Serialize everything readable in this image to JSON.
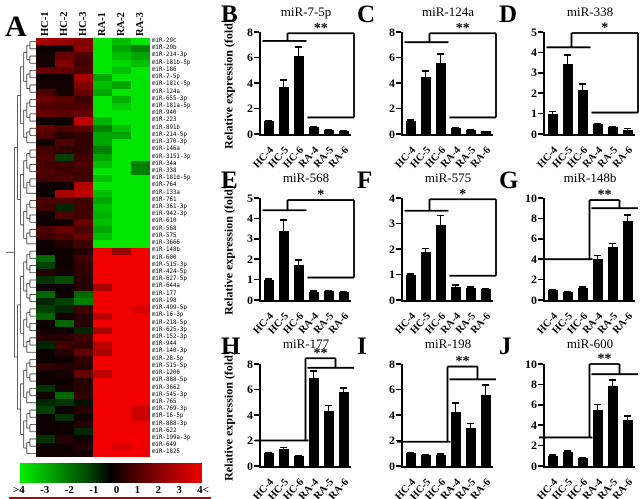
{
  "panel_a": {
    "letter": "A"
  },
  "chart_data": [
    {
      "type": "heatmap",
      "panel": "A",
      "col_labels": [
        "HC-1",
        "HC-2",
        "HC-3",
        "RA-1",
        "RA-2",
        "RA-3"
      ],
      "row_labels": [
        "miR-29c",
        "miR-29b",
        "miR-214-3p",
        "miR-181b-5p",
        "miR-186",
        "miR-7-5p",
        "miR-181c-5p",
        "miR-124a",
        "miR-655-3p",
        "miR-181a-5p",
        "miR-940",
        "miR-223",
        "miR-891b",
        "miR-214-5p",
        "miR-370-3p",
        "miR-146a",
        "miR-3151-3p",
        "miR-34a",
        "miR-338",
        "miR-181d-5p",
        "miR-764",
        "miR-133a",
        "miR-761",
        "miR-361-3p",
        "miR-942-3p",
        "miR-610",
        "miR-568",
        "miR-575",
        "miR-3666",
        "miR-148b",
        "miR-600",
        "miR-515-3p",
        "miR-424-5p",
        "miR-627-5p",
        "miR-644a",
        "miR-177",
        "miR-198",
        "miR-499-5p",
        "miR-16-3p",
        "miR-218-5p",
        "miR-625-3p",
        "miR-152-3p",
        "miR-944",
        "miR-140-3p",
        "miR-28-5p",
        "miR-515-5p",
        "miR-1200",
        "miR-888-5p",
        "miR-3662",
        "miR-545-3p",
        "miR-765",
        "miR-769-3p",
        "miR-16-5p",
        "miR-888-3p",
        "miR-622",
        "miR-199a-3p",
        "miR-649",
        "miR-1825"
      ],
      "values": [
        [
          2.6,
          2.4,
          2.0,
          -3.6,
          -3.0,
          -3.6
        ],
        [
          0.2,
          0.2,
          2.2,
          -3.6,
          -2.6,
          -2.0
        ],
        [
          0.3,
          1.6,
          1.2,
          -3.6,
          -3.0,
          -2.6
        ],
        [
          0.3,
          2.0,
          1.0,
          -3.6,
          -3.4,
          -3.0
        ],
        [
          1.6,
          1.5,
          1.2,
          -3.6,
          -3.0,
          -3.6
        ],
        [
          0.2,
          0.2,
          2.6,
          -2.6,
          -3.6,
          -3.6
        ],
        [
          0.3,
          0.3,
          2.0,
          -3.0,
          -2.6,
          -3.6
        ],
        [
          1.2,
          0.3,
          1.6,
          -2.6,
          -3.6,
          -3.6
        ],
        [
          1.6,
          1.4,
          1.0,
          -3.6,
          -2.8,
          -3.6
        ],
        [
          1.2,
          1.2,
          1.2,
          -3.6,
          -3.2,
          -3.6
        ],
        [
          1.6,
          1.4,
          1.6,
          -3.6,
          -3.6,
          -3.6
        ],
        [
          0.2,
          0.2,
          3.0,
          -2.8,
          -3.6,
          -3.6
        ],
        [
          1.6,
          1.2,
          1.4,
          -2.0,
          -3.0,
          -3.6
        ],
        [
          1.2,
          0.6,
          0.8,
          -2.6,
          -2.6,
          -3.6
        ],
        [
          0.2,
          1.2,
          0.8,
          -2.6,
          -3.6,
          -3.6
        ],
        [
          1.0,
          0.8,
          0.8,
          -2.0,
          -3.6,
          -3.6
        ],
        [
          1.2,
          -1.0,
          1.0,
          -2.6,
          -3.6,
          -3.6
        ],
        [
          1.0,
          1.0,
          1.2,
          -3.0,
          -3.6,
          -2.0
        ],
        [
          1.2,
          1.0,
          1.0,
          -3.6,
          -3.6,
          -2.0
        ],
        [
          1.0,
          1.2,
          1.0,
          -3.0,
          -3.6,
          -3.6
        ],
        [
          0.2,
          0.2,
          2.8,
          -3.6,
          -3.6,
          -3.6
        ],
        [
          0.2,
          2.6,
          3.0,
          -3.0,
          -3.6,
          -3.6
        ],
        [
          1.2,
          1.2,
          1.0,
          -2.6,
          -3.6,
          -3.6
        ],
        [
          1.0,
          -0.6,
          1.0,
          -3.0,
          -3.6,
          -3.6
        ],
        [
          0.2,
          1.2,
          1.0,
          -2.8,
          -3.6,
          -3.6
        ],
        [
          0.2,
          0.2,
          1.6,
          -3.0,
          -3.6,
          -3.6
        ],
        [
          1.2,
          1.6,
          1.2,
          -2.6,
          -3.6,
          -3.6
        ],
        [
          1.0,
          1.2,
          1.6,
          -3.0,
          -3.6,
          -3.6
        ],
        [
          0.2,
          0.6,
          1.0,
          -3.6,
          -3.6,
          -3.6
        ],
        [
          0.2,
          0.2,
          0.6,
          3.6,
          2.4,
          3.8
        ],
        [
          -1.6,
          0.2,
          1.0,
          3.8,
          3.8,
          3.8
        ],
        [
          -1.0,
          0.2,
          0.8,
          3.8,
          3.8,
          3.8
        ],
        [
          0.6,
          0.3,
          0.8,
          3.8,
          3.8,
          3.8
        ],
        [
          -0.8,
          -1.2,
          0.6,
          3.8,
          3.8,
          3.8
        ],
        [
          0.2,
          0.2,
          0.6,
          2.6,
          3.8,
          3.8
        ],
        [
          -1.6,
          0.2,
          -1.6,
          3.8,
          3.8,
          3.8
        ],
        [
          -0.6,
          -1.0,
          -2.0,
          3.8,
          3.8,
          3.8
        ],
        [
          -1.0,
          -0.6,
          1.0,
          3.8,
          3.8,
          3.4
        ],
        [
          -1.6,
          0.3,
          0.6,
          2.8,
          3.8,
          3.8
        ],
        [
          0.2,
          -1.6,
          0.6,
          3.8,
          3.8,
          3.8
        ],
        [
          0.2,
          0.2,
          -0.6,
          2.6,
          3.8,
          3.8
        ],
        [
          0.6,
          0.6,
          1.0,
          3.8,
          3.8,
          3.8
        ],
        [
          -0.6,
          1.0,
          0.8,
          3.0,
          3.8,
          3.8
        ],
        [
          0.2,
          0.6,
          1.6,
          2.6,
          3.8,
          3.8
        ],
        [
          0.2,
          0.2,
          0.8,
          3.8,
          3.8,
          3.8
        ],
        [
          0.8,
          0.6,
          0.6,
          3.8,
          3.8,
          3.8
        ],
        [
          0.2,
          0.3,
          1.6,
          3.0,
          3.8,
          3.8
        ],
        [
          0.2,
          0.2,
          0.6,
          3.8,
          3.8,
          3.8
        ],
        [
          -0.8,
          0.3,
          0.6,
          3.8,
          3.8,
          3.8
        ],
        [
          0.2,
          -1.6,
          0.8,
          3.8,
          3.8,
          3.8
        ],
        [
          -0.6,
          -0.8,
          -0.3,
          3.8,
          3.8,
          3.8
        ],
        [
          -1.0,
          0.2,
          0.6,
          3.8,
          3.8,
          3.2
        ],
        [
          0.2,
          -0.8,
          0.3,
          3.8,
          3.8,
          3.2
        ],
        [
          0.2,
          0.2,
          0.6,
          3.8,
          3.8,
          3.8
        ],
        [
          0.2,
          0.2,
          -0.6,
          3.8,
          3.8,
          3.8
        ],
        [
          -0.8,
          0.6,
          0.3,
          3.8,
          3.8,
          3.8
        ],
        [
          0.2,
          0.2,
          0.6,
          3.8,
          3.4,
          3.8
        ],
        [
          0.2,
          0.3,
          0.3,
          3.8,
          3.8,
          3.8
        ]
      ],
      "value_range": [
        -4,
        4
      ],
      "colorbar_ticks": [
        ">4",
        "-3",
        "-2",
        "-1",
        "0",
        "1",
        "2",
        "3",
        "4<"
      ],
      "colors": {
        "negative": "#00ff00",
        "zero": "#000000",
        "positive": "#ff0000"
      }
    },
    {
      "type": "bar",
      "panel": "B",
      "title": "miR-7-5p",
      "ylabel": "Relative expression (fold)",
      "show_ylabel": true,
      "categories": [
        "HC-4",
        "HC-5",
        "HC-6",
        "RA-4",
        "RA-5",
        "RA-6"
      ],
      "values": [
        1.0,
        3.7,
        6.1,
        0.55,
        0.3,
        0.25
      ],
      "errors": [
        0.12,
        0.6,
        0.8,
        0.08,
        0.06,
        0.05
      ],
      "ylim": [
        0,
        8
      ],
      "ystep": 2,
      "significance": {
        "label": "**",
        "high_group": "HC",
        "high_line_y": 7.3,
        "low_line_y": 1.3,
        "top_line_y": 7.9
      }
    },
    {
      "type": "bar",
      "panel": "C",
      "title": "miR-124a",
      "ylabel": "Relative expression (fold)",
      "show_ylabel": false,
      "categories": [
        "HC-4",
        "HC-5",
        "HC-6",
        "RA-4",
        "RA-5",
        "RA-6"
      ],
      "values": [
        1.0,
        4.5,
        5.6,
        0.45,
        0.3,
        0.2
      ],
      "errors": [
        0.18,
        0.5,
        0.75,
        0.08,
        0.06,
        0.05
      ],
      "ylim": [
        0,
        8
      ],
      "ystep": 2,
      "significance": {
        "label": "**",
        "high_group": "HC",
        "high_line_y": 7.2,
        "low_line_y": 1.3,
        "top_line_y": 7.9
      }
    },
    {
      "type": "bar",
      "panel": "D",
      "title": "miR-338",
      "ylabel": "Relative expression (fold)",
      "show_ylabel": false,
      "categories": [
        "HC-4",
        "HC-5",
        "HC-6",
        "RA-4",
        "RA-5",
        "RA-6"
      ],
      "values": [
        1.0,
        3.45,
        2.15,
        0.5,
        0.33,
        0.22
      ],
      "errors": [
        0.15,
        0.45,
        0.35,
        0.05,
        0.05,
        0.08
      ],
      "ylim": [
        0,
        5
      ],
      "ystep": 1,
      "significance": {
        "label": "*",
        "high_group": "HC",
        "high_line_y": 4.25,
        "low_line_y": 1.05,
        "top_line_y": 4.95
      }
    },
    {
      "type": "bar",
      "panel": "E",
      "title": "miR-568",
      "ylabel": "Relative expression (fold)",
      "show_ylabel": true,
      "categories": [
        "HC-4",
        "HC-5",
        "HC-6",
        "RA-4",
        "RA-5",
        "RA-6"
      ],
      "values": [
        1.0,
        3.4,
        1.7,
        0.4,
        0.42,
        0.38
      ],
      "errors": [
        0.08,
        0.55,
        0.3,
        0.08,
        0.09,
        0.08
      ],
      "ylim": [
        0,
        5
      ],
      "ystep": 1,
      "significance": {
        "label": "*",
        "high_group": "HC",
        "high_line_y": 4.4,
        "low_line_y": 1.1,
        "top_line_y": 4.9
      }
    },
    {
      "type": "bar",
      "panel": "F",
      "title": "miR-575",
      "ylabel": "Relative expression (fold)",
      "show_ylabel": false,
      "categories": [
        "HC-4",
        "HC-5",
        "HC-6",
        "RA-4",
        "RA-5",
        "RA-6"
      ],
      "values": [
        0.97,
        1.9,
        2.95,
        0.52,
        0.47,
        0.42
      ],
      "errors": [
        0.07,
        0.15,
        0.4,
        0.1,
        0.08,
        0.07
      ],
      "ylim": [
        0,
        4
      ],
      "ystep": 1,
      "significance": {
        "label": "*",
        "high_group": "HC",
        "high_line_y": 3.5,
        "low_line_y": 0.95,
        "top_line_y": 3.95
      }
    },
    {
      "type": "bar",
      "panel": "G",
      "title": "miR-148b",
      "ylabel": "Relative expression (fold)",
      "show_ylabel": false,
      "categories": [
        "HC-4",
        "HC-5",
        "HC-6",
        "RA-4",
        "RA-5",
        "RA-6"
      ],
      "values": [
        1.0,
        0.8,
        1.2,
        4.0,
        5.2,
        7.7
      ],
      "errors": [
        0.1,
        0.1,
        0.15,
        0.45,
        0.4,
        0.7
      ],
      "ylim": [
        0,
        10
      ],
      "ystep": 2,
      "significance": {
        "label": "**",
        "high_group": "RA",
        "high_line_y": 9.0,
        "low_line_y": 4.0,
        "top_line_y": 9.8
      }
    },
    {
      "type": "bar",
      "panel": "H",
      "title": "miR-177",
      "ylabel": "Relative expression (fold)",
      "show_ylabel": true,
      "categories": [
        "HC-4",
        "HC-5",
        "HC-6",
        "RA-4",
        "RA-5",
        "RA-6"
      ],
      "values": [
        1.0,
        1.3,
        0.8,
        6.9,
        4.3,
        5.8
      ],
      "errors": [
        0.1,
        0.2,
        0.1,
        0.6,
        0.5,
        0.4
      ],
      "ylim": [
        0,
        8
      ],
      "ystep": 2,
      "significance": {
        "label": "**",
        "high_group": "RA",
        "high_line_y": 7.7,
        "low_line_y": 2.0,
        "top_line_y": 8.45
      }
    },
    {
      "type": "bar",
      "panel": "I",
      "title": "miR-198",
      "ylabel": "Relative expression (fold)",
      "show_ylabel": false,
      "categories": [
        "HC-4",
        "HC-5",
        "HC-6",
        "RA-4",
        "RA-5",
        "RA-6"
      ],
      "values": [
        1.0,
        0.85,
        0.9,
        4.2,
        3.0,
        5.6
      ],
      "errors": [
        0.1,
        0.08,
        0.1,
        0.8,
        0.4,
        0.8
      ],
      "ylim": [
        0,
        8
      ],
      "ystep": 2,
      "significance": {
        "label": "**",
        "high_group": "RA",
        "high_line_y": 6.8,
        "low_line_y": 1.9,
        "top_line_y": 7.8
      }
    },
    {
      "type": "bar",
      "panel": "J",
      "title": "miR-600",
      "ylabel": "Relative expression (fold)",
      "show_ylabel": false,
      "categories": [
        "HC-4",
        "HC-5",
        "HC-6",
        "RA-4",
        "RA-5",
        "RA-6"
      ],
      "values": [
        1.0,
        1.4,
        0.8,
        5.5,
        7.8,
        4.5
      ],
      "errors": [
        0.15,
        0.12,
        0.12,
        0.6,
        0.7,
        0.5
      ],
      "ylim": [
        0,
        10
      ],
      "ystep": 2,
      "significance": {
        "label": "**",
        "high_group": "RA",
        "high_line_y": 9.0,
        "low_line_y": 2.8,
        "top_line_y": 10.0
      }
    }
  ]
}
